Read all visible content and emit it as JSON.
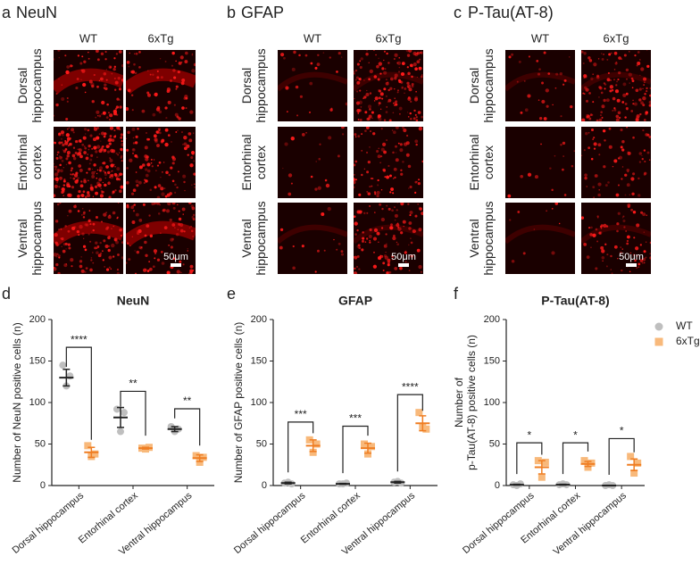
{
  "micrograph_panels": [
    {
      "letter": "a",
      "title": "NeuN",
      "columns": [
        "WT",
        "6xTg"
      ],
      "rows": [
        "Dorsal hippocampus",
        "Entorhinal cortex",
        "Ventral hippocampus"
      ],
      "scale_bar": "50μm"
    },
    {
      "letter": "b",
      "title": "GFAP",
      "columns": [
        "WT",
        "6xTg"
      ],
      "rows": [
        "Dorsal hippocampus",
        "Entorhinal cortex",
        "Ventral hippocampus"
      ],
      "scale_bar": "50μm"
    },
    {
      "letter": "c",
      "title": "P-Tau(AT-8)",
      "columns": [
        "WT",
        "6xTg"
      ],
      "rows": [
        "Dorsal hippocampus",
        "Entorhinal cortex",
        "Ventral hippocampus"
      ],
      "scale_bar": "50μm"
    }
  ],
  "chart_data": [
    {
      "type": "dot",
      "letter": "d",
      "title": "NeuN",
      "y_label": [
        "Number of NeuN positive cells (n)"
      ],
      "categories": [
        "Dorsal hippocampus",
        "Entorhinal cortex",
        "Ventral hippocampus"
      ],
      "series": [
        {
          "color": "#bfbfbf",
          "mean_color": "#222222",
          "values": [
            130,
            82,
            68
          ],
          "errors": [
            10,
            12,
            3
          ],
          "points": [
            [
              145,
              120,
              132
            ],
            [
              92,
              65,
              88
            ],
            [
              71,
              65,
              68
            ]
          ]
        },
        {
          "color": "#f8b97b",
          "mean_color": "#ef7d22",
          "values": [
            40,
            45,
            33
          ],
          "errors": [
            6,
            1,
            4
          ],
          "points": [
            [
              48,
              35,
              38
            ],
            [
              45,
              44,
              46
            ],
            [
              36,
              28,
              34
            ]
          ]
        }
      ],
      "significance": [
        "****",
        "**",
        "**"
      ],
      "ylim": [
        0,
        200
      ],
      "yticks": [
        0,
        50,
        100,
        150,
        200
      ]
    },
    {
      "type": "dot",
      "letter": "e",
      "title": "GFAP",
      "y_label": [
        "Number of GFAP positive cells (n)"
      ],
      "categories": [
        "Dorsal hippocampus",
        "Entorhinal cortex",
        "Ventral hippocampus"
      ],
      "series": [
        {
          "color": "#bfbfbf",
          "mean_color": "#222222",
          "values": [
            3,
            2,
            4
          ],
          "errors": [
            1,
            0.5,
            1
          ],
          "points": [
            [
              3,
              4,
              2
            ],
            [
              2,
              2,
              3
            ],
            [
              4,
              5,
              3
            ]
          ]
        },
        {
          "color": "#f8b97b",
          "mean_color": "#ef7d22",
          "values": [
            48,
            45,
            75
          ],
          "errors": [
            7,
            6,
            9
          ],
          "points": [
            [
              55,
              40,
              50
            ],
            [
              50,
              38,
              47
            ],
            [
              88,
              70,
              68
            ]
          ]
        }
      ],
      "significance": [
        "***",
        "***",
        "****"
      ],
      "ylim": [
        0,
        200
      ],
      "yticks": [
        0,
        50,
        100,
        150,
        200
      ]
    },
    {
      "type": "dot",
      "letter": "f",
      "title": "P-Tau(AT-8)",
      "y_label": [
        "Number of",
        "p-Tau(AT-8) positive cells (n)"
      ],
      "categories": [
        "Dorsal hippocampus",
        "Entorhinal cortex",
        "Ventral hippocampus"
      ],
      "series": [
        {
          "name": "WT",
          "color": "#bfbfbf",
          "mean_color": "#222222",
          "values": [
            1,
            1,
            0
          ],
          "errors": [
            0.5,
            0.5,
            0.3
          ],
          "points": [
            [
              1,
              0,
              2
            ],
            [
              1,
              2,
              1
            ],
            [
              0,
              1,
              0
            ]
          ]
        },
        {
          "name": "6xTg",
          "color": "#f8b97b",
          "mean_color": "#ef7d22",
          "values": [
            22,
            26,
            25
          ],
          "errors": [
            8,
            3,
            7
          ],
          "points": [
            [
              30,
              10,
              28
            ],
            [
              30,
              22,
              27
            ],
            [
              35,
              15,
              27
            ]
          ]
        }
      ],
      "significance": [
        "*",
        "*",
        "*"
      ],
      "ylim": [
        0,
        200
      ],
      "yticks": [
        0,
        50,
        100,
        150,
        200
      ],
      "legend": "right"
    }
  ]
}
